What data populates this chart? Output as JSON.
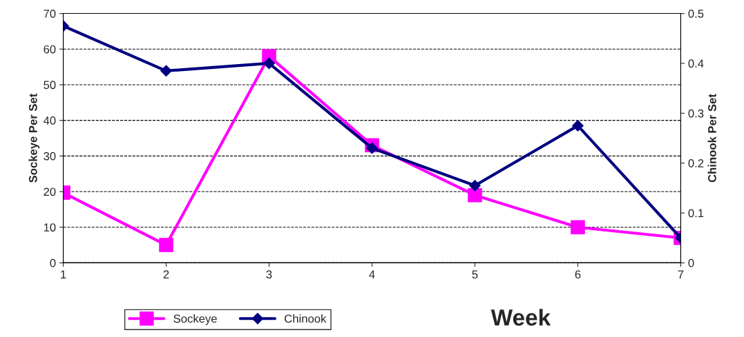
{
  "chart_data": {
    "type": "line",
    "xlabel": "Week",
    "ylabel": "Sockeye Per Set",
    "y2label": "Chinook Per Set",
    "x": [
      1,
      2,
      3,
      4,
      5,
      6,
      7
    ],
    "xlim": [
      1,
      7
    ],
    "xticks": [
      1,
      2,
      3,
      4,
      5,
      6,
      7
    ],
    "ylim": [
      0,
      70
    ],
    "yticks": [
      0,
      10,
      20,
      30,
      40,
      50,
      60,
      70
    ],
    "y2lim": [
      0,
      0.5
    ],
    "y2ticks": [
      0,
      0.1,
      0.2,
      0.3,
      0.4,
      0.5
    ],
    "grid": "y",
    "legend": "bottom left",
    "series": [
      {
        "name": "Sockeye",
        "color": "#ff00ff",
        "marker": "square",
        "values": [
          19.7,
          5,
          58,
          33,
          19,
          10,
          7
        ]
      },
      {
        "name": "Chinook",
        "color": "#000080",
        "marker": "diamond",
        "axis": "y2",
        "values": [
          0.475,
          0.385,
          0.4,
          0.23,
          0.155,
          0.275,
          0.05
        ]
      }
    ]
  }
}
